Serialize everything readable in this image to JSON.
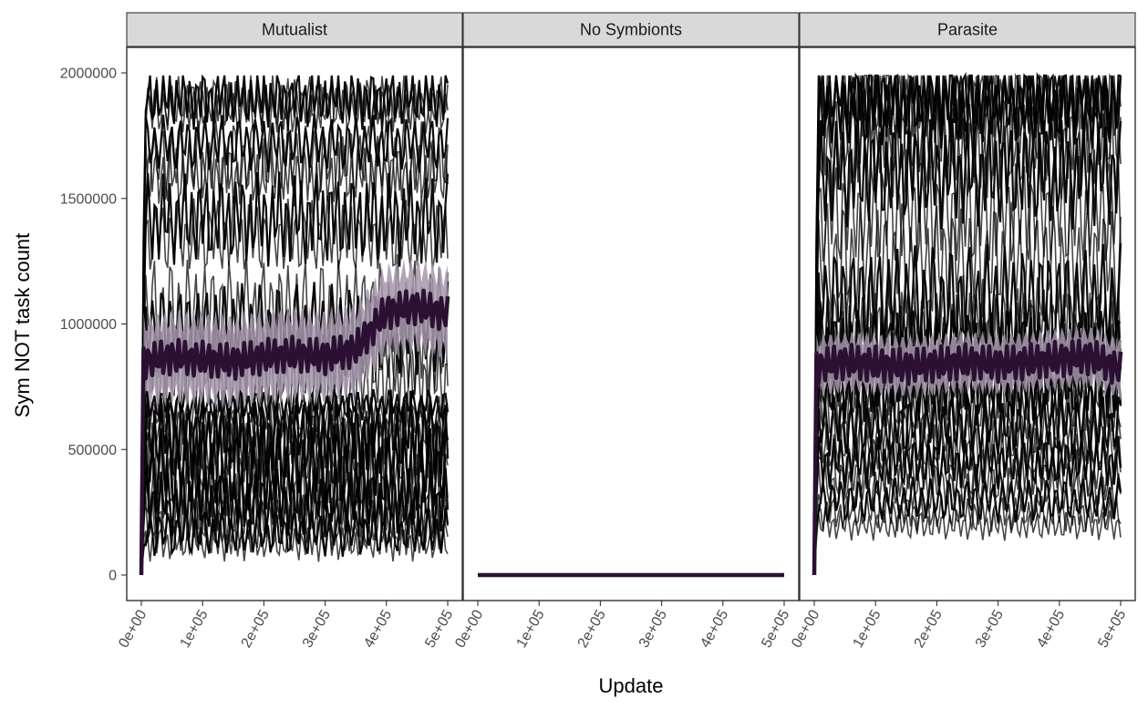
{
  "chart_data": {
    "type": "line",
    "facets": [
      "Mutualist",
      "No Symbionts",
      "Parasite"
    ],
    "xlabel": "Update",
    "ylabel": "Sym NOT task count",
    "xlim": [
      0,
      500000
    ],
    "ylim": [
      0,
      2000000
    ],
    "x_ticks": [
      0,
      100000,
      200000,
      300000,
      400000,
      500000
    ],
    "x_tick_labels": [
      "0e+00",
      "1e+05",
      "2e+05",
      "3e+05",
      "4e+05",
      "5e+05"
    ],
    "y_ticks": [
      0,
      500000,
      1000000,
      1500000,
      2000000
    ],
    "y_tick_labels": [
      "0",
      "500000",
      "1000000",
      "1500000",
      "2000000"
    ],
    "colors": {
      "replicate": "#000000",
      "mean": "#2b1033",
      "ribbon": "#a597ab"
    },
    "grid": false,
    "legend": "none",
    "panels": [
      {
        "name": "Mutualist",
        "replicate_levels": [
          1900000,
          1880000,
          1860000,
          1720000,
          1650000,
          1600000,
          1420000,
          1350000,
          1050000,
          980000,
          870000,
          780000,
          680000,
          640000,
          600000,
          560000,
          520000,
          470000,
          430000,
          380000,
          330000,
          290000,
          250000,
          210000,
          170000,
          130000
        ],
        "replicate_amplitudes": [
          200000,
          180000,
          160000,
          180000,
          260000,
          220000,
          300000,
          250000,
          350000,
          300000,
          250000,
          300000,
          100000,
          120000,
          140000,
          280000,
          250000,
          300000,
          280000,
          260000,
          240000,
          220000,
          200000,
          180000,
          150000,
          120000
        ],
        "mean": {
          "x": [
            0,
            50000,
            100000,
            150000,
            200000,
            250000,
            300000,
            350000,
            400000,
            450000,
            500000
          ],
          "y": [
            850000,
            870000,
            860000,
            850000,
            870000,
            880000,
            870000,
            900000,
            1050000,
            1070000,
            1040000
          ]
        },
        "ribbon_halfwidth": 200000
      },
      {
        "name": "No Symbionts",
        "replicate_levels": [
          0
        ],
        "replicate_amplitudes": [
          0
        ],
        "mean": {
          "x": [
            0,
            500000
          ],
          "y": [
            0,
            0
          ]
        },
        "ribbon_halfwidth": 0
      },
      {
        "name": "Parasite",
        "replicate_levels": [
          1930000,
          1900000,
          1880000,
          1860000,
          1750000,
          1700000,
          1600000,
          1450000,
          1250000,
          1100000,
          1000000,
          950000,
          900000,
          850000,
          800000,
          750000,
          700000,
          650000,
          600000,
          550000,
          500000,
          450000,
          400000,
          350000,
          300000,
          250000,
          200000
        ],
        "replicate_amplitudes": [
          300000,
          280000,
          260000,
          250000,
          300000,
          320000,
          350000,
          380000,
          400000,
          350000,
          300000,
          280000,
          260000,
          250000,
          240000,
          220000,
          200000,
          200000,
          200000,
          180000,
          180000,
          170000,
          160000,
          150000,
          140000,
          120000,
          100000
        ],
        "mean": {
          "x": [
            0,
            50000,
            100000,
            150000,
            200000,
            250000,
            300000,
            350000,
            400000,
            450000,
            500000
          ],
          "y": [
            830000,
            850000,
            840000,
            830000,
            840000,
            850000,
            840000,
            850000,
            860000,
            870000,
            820000
          ]
        },
        "ribbon_halfwidth": 130000
      }
    ]
  }
}
